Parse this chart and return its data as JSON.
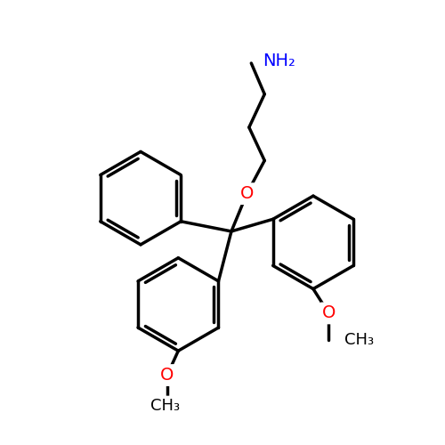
{
  "bg_color": "#ffffff",
  "bond_color": "#000000",
  "bond_width": 2.5,
  "atom_colors": {
    "O": "#ff0000",
    "N": "#0000ff",
    "C": "#000000"
  },
  "font_size_label": 14,
  "figsize": [
    5.0,
    5.0
  ],
  "dpi": 100,
  "central_carbon": [
    5.2,
    4.8
  ],
  "xlim": [
    0,
    10
  ],
  "ylim": [
    0,
    10
  ]
}
